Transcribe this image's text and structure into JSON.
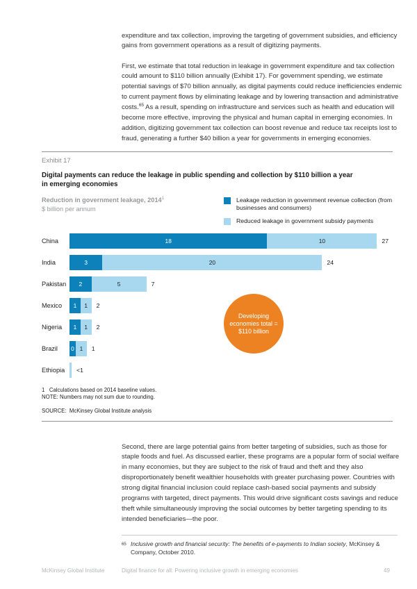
{
  "body": {
    "para1": "expenditure and tax collection, improving the targeting of government subsidies, and efficiency gains from government operations as a result of digitizing payments.",
    "para2_before_sup": "First, we estimate that total reduction in leakage in government expenditure and tax collection could amount to $110 billion annually (Exhibit 17). For government spending, we estimate potential savings of $70 billion annually, as digital payments could reduce inefficiencies endemic to current payment flows by eliminating leakage and by lowering transaction and administrative costs.",
    "para2_sup": "65",
    "para2_after_sup": " As a result, spending on infrastructure and services such as health and education will become more effective, improving the physical and human capital in emerging economies. In addition, digitizing government tax collection can boost revenue and reduce tax receipts lost to fraud, generating a further $40 billion a year for governments in emerging economies.",
    "para3": "Second, there are large potential gains from better targeting of subsidies, such as those for staple foods and fuel. As discussed earlier, these programs are a popular form of social welfare in many economies, but they are subject to the risk of fraud and theft and they also disproportionately benefit wealthier households with greater purchasing power. Countries with strong digital financial inclusion could replace cash-based social payments and subsidy programs with targeted, direct payments. This would drive significant costs savings and reduce theft while simultaneously improving the social outcomes by better targeting spending to its intended beneficiaries—the poor."
  },
  "exhibit": {
    "label": "Exhibit 17",
    "title_line1": "Digital payments can reduce the leakage in public spending and collection by $110 billion a year",
    "title_line2": "in emerging economies",
    "subtitle_bold": "Reduction in government leakage, 2014",
    "subtitle_sup": "1",
    "subtitle_unit": "$ billion per annum",
    "callout_text": "Developing economies total = $110 billion",
    "callout_color": "#ed8222",
    "footnote1": "1   Calculations based on 2014 baseline values.",
    "note": "NOTE: Numbers may not sum due to rounding.",
    "source": "SOURCE:  McKinsey Global Institute analysis"
  },
  "chart_data": {
    "type": "bar",
    "orientation": "horizontal",
    "title": "Digital payments can reduce the leakage in public spending and collection by $110 billion a year in emerging economies",
    "subtitle": "Reduction in government leakage, 2014",
    "unit": "$ billion per annum",
    "legend_position": "top-right",
    "grid": false,
    "xlim": [
      0,
      28
    ],
    "categories": [
      "China",
      "India",
      "Pakistan",
      "Mexico",
      "Nigeria",
      "Brazil",
      "Ethiopia"
    ],
    "series": [
      {
        "name": "Leakage reduction in government revenue collection (from businesses and consumers)",
        "color": "#0d82ba",
        "values": [
          18,
          3,
          2,
          1,
          1,
          0,
          null
        ]
      },
      {
        "name": "Reduced leakage in government subsidy payments",
        "color": "#a8d8f0",
        "values": [
          10,
          20,
          5,
          1,
          1,
          1,
          0.2
        ]
      }
    ],
    "totals": [
      "27",
      "24",
      "7",
      "2",
      "2",
      "1",
      "<1"
    ],
    "annotation": "Developing economies total = $110 billion",
    "rows": [
      {
        "label": "China",
        "dark": 18,
        "dark_label": "18",
        "light": 10,
        "light_label": "10",
        "total": "27"
      },
      {
        "label": "India",
        "dark": 3,
        "dark_label": "3",
        "light": 20,
        "light_label": "20",
        "total": "24"
      },
      {
        "label": "Pakistan",
        "dark": 2,
        "dark_label": "2",
        "light": 5,
        "light_label": "5",
        "total": "7"
      },
      {
        "label": "Mexico",
        "dark": 1,
        "dark_label": "1",
        "light": 1,
        "light_label": "1",
        "total": "2"
      },
      {
        "label": "Nigeria",
        "dark": 1,
        "dark_label": "1",
        "light": 1,
        "light_label": "1",
        "total": "2"
      },
      {
        "label": "Brazil",
        "dark": 0,
        "dark_label": "0",
        "light": 1,
        "light_label": "1",
        "total": "1"
      },
      {
        "label": "Ethiopia",
        "dark": null,
        "dark_label": null,
        "light": 0.2,
        "light_label": null,
        "total": "<1"
      }
    ]
  },
  "legend": {
    "item1": "Leakage reduction in government revenue collection (from businesses and consumers)",
    "item2": "Reduced leakage in government subsidy payments"
  },
  "footnote": {
    "marker": "65",
    "italic_text": "Inclusive growth and financial security: The benefits of e-payments to Indian society",
    "normal_text": ", McKinsey & Company, October 2010."
  },
  "footer": {
    "left": "McKinsey Global Institute",
    "center": "Digital finance for all: Powering inclusive growth in emerging economies",
    "page_number": "49"
  }
}
